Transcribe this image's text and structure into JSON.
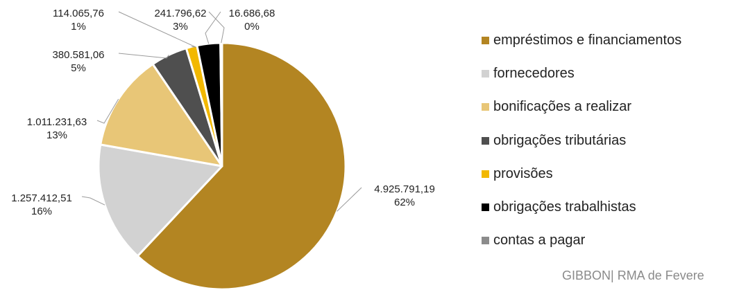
{
  "chart_data": {
    "type": "pie",
    "title": "",
    "series": [
      {
        "label": "empréstimos e financiamentos",
        "value": 4925791.19,
        "value_text": "4.925.791,19",
        "percent_text": "62%",
        "color": "#B38522"
      },
      {
        "label": "fornecedores",
        "value": 1257412.51,
        "value_text": "1.257.412,51",
        "percent_text": "16%",
        "color": "#D2D2D2"
      },
      {
        "label": "bonificações a realizar",
        "value": 1011231.63,
        "value_text": "1.011.231,63",
        "percent_text": "13%",
        "color": "#E8C677"
      },
      {
        "label": "obrigações tributárias",
        "value": 380581.06,
        "value_text": "380.581,06",
        "percent_text": "5%",
        "color": "#4F4F4F"
      },
      {
        "label": "provisões",
        "value": 114065.76,
        "value_text": "114.065,76",
        "percent_text": "1%",
        "color": "#F2B800"
      },
      {
        "label": "obrigações trabalhistas",
        "value": 241796.62,
        "value_text": "241.796,62",
        "percent_text": "3%",
        "color": "#000000"
      },
      {
        "label": "contas a pagar",
        "value": 16686.68,
        "value_text": "16.686,68",
        "percent_text": "0%",
        "color": "#8C8C8C"
      }
    ],
    "legend_position": "right"
  },
  "footer": {
    "text": "GIBBON| RMA de Fevere"
  }
}
